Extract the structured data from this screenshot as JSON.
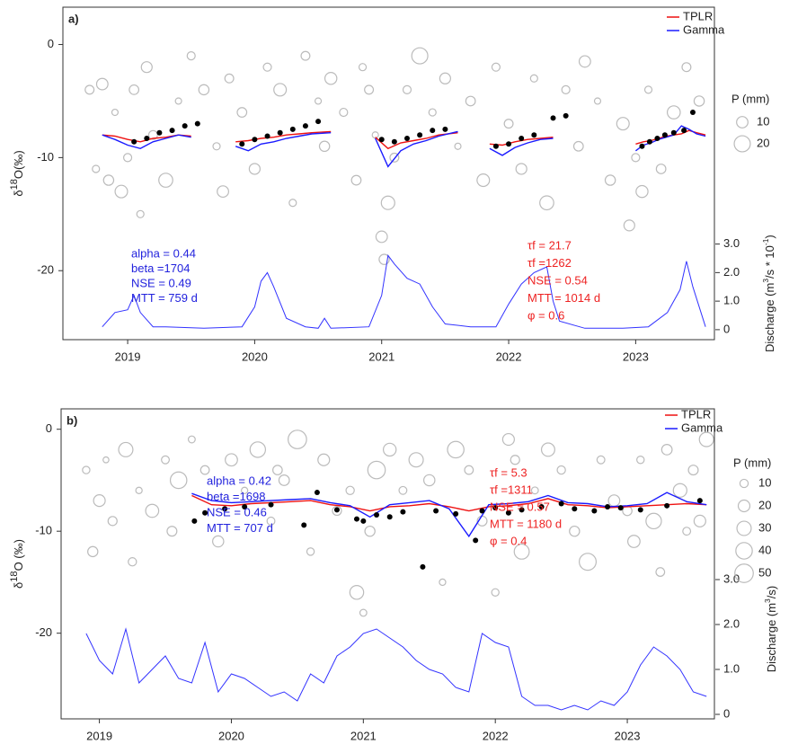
{
  "chart_data": [
    {
      "type": "line",
      "panel_label": "a)",
      "y_label_parts": [
        "δ",
        "18",
        "O(‰)"
      ],
      "y2_label_parts": [
        "Discharge (m",
        "3",
        "/s * 10",
        "-1",
        ")"
      ],
      "xlim": [
        2018.49,
        2023.62
      ],
      "xticks": [
        2019,
        2020,
        2021,
        2022,
        2023
      ],
      "ylim": [
        -26.1,
        3.3
      ],
      "yticks": [
        0,
        -10,
        -20
      ],
      "y2lim": [
        -0.35,
        11.3
      ],
      "y2ticks": [
        0,
        {
          "value": 1,
          "label": "1.0"
        },
        {
          "value": 2,
          "label": "2.0"
        },
        {
          "value": 3,
          "label": "3.0"
        }
      ],
      "x": [
        2018.8,
        2018.9,
        2019.0,
        2019.1,
        2019.2,
        2019.3,
        2019.4,
        2019.5,
        2019.7,
        2019.85,
        2019.95,
        2020.05,
        2020.15,
        2020.25,
        2020.35,
        2020.45,
        2020.6,
        2020.8,
        2020.95,
        2021.05,
        2021.15,
        2021.25,
        2021.35,
        2021.45,
        2021.6,
        2021.75,
        2021.85,
        2021.95,
        2022.05,
        2022.15,
        2022.25,
        2022.35,
        2022.7,
        2023.0,
        2023.06,
        2023.12,
        2023.18,
        2023.24,
        2023.3,
        2023.36,
        2023.42,
        2023.48,
        2023.55
      ],
      "series": [
        {
          "name": "TPLR",
          "color": "#ee1111",
          "values": [
            -8.0,
            -8.1,
            -8.4,
            -8.6,
            -8.3,
            -8.2,
            -8.0,
            -8.1,
            null,
            -8.6,
            -8.5,
            -8.3,
            -8.2,
            -8.0,
            -7.9,
            -7.8,
            -7.7,
            null,
            -8.2,
            -9.2,
            -8.7,
            -8.5,
            -8.3,
            -8.0,
            -7.8,
            null,
            -8.8,
            -8.9,
            -8.6,
            -8.4,
            -8.3,
            -8.2,
            null,
            -8.8,
            -8.6,
            -8.5,
            -8.3,
            -8.1,
            -8.0,
            -7.9,
            -7.6,
            -7.8,
            -8.0
          ]
        },
        {
          "name": "Gamma",
          "color": "#1a1aff",
          "values": [
            -8.0,
            -8.4,
            -8.9,
            -9.2,
            -8.6,
            -8.3,
            -8.0,
            -8.2,
            null,
            -9.0,
            -9.4,
            -8.8,
            -8.6,
            -8.3,
            -8.1,
            -7.9,
            -7.8,
            null,
            -8.3,
            -10.8,
            -9.4,
            -8.8,
            -8.5,
            -8.1,
            -7.7,
            null,
            -9.2,
            -9.8,
            -9.1,
            -8.7,
            -8.4,
            -8.3,
            null,
            -9.4,
            -8.9,
            -8.7,
            -8.4,
            -8.2,
            -8.0,
            -7.2,
            -7.5,
            -7.9,
            -8.1
          ]
        }
      ],
      "observed": {
        "color": "#000000",
        "x": [
          2019.05,
          2019.15,
          2019.25,
          2019.35,
          2019.45,
          2019.55,
          2019.9,
          2020.0,
          2020.1,
          2020.2,
          2020.3,
          2020.4,
          2020.5,
          2021.0,
          2021.1,
          2021.2,
          2021.3,
          2021.4,
          2021.5,
          2021.9,
          2022.0,
          2022.1,
          2022.2,
          2022.35,
          2022.45,
          2023.05,
          2023.11,
          2023.17,
          2023.23,
          2023.3,
          2023.38,
          2023.45
        ],
        "values": [
          -8.6,
          -8.3,
          -7.8,
          -7.6,
          -7.2,
          -7.0,
          -8.8,
          -8.4,
          -8.1,
          -7.8,
          -7.5,
          -7.2,
          -6.8,
          -8.4,
          -8.6,
          -8.3,
          -8.0,
          -7.6,
          -7.5,
          -9.0,
          -8.8,
          -8.3,
          -8.0,
          -6.5,
          -6.3,
          -9.0,
          -8.6,
          -8.3,
          -8.0,
          -7.8,
          -7.6,
          -6.0
        ]
      },
      "precipitation": {
        "color": "#bbbbbb",
        "x": [
          2018.7,
          2018.75,
          2018.8,
          2018.85,
          2018.9,
          2018.95,
          2019.0,
          2019.05,
          2019.1,
          2019.15,
          2019.2,
          2019.3,
          2019.4,
          2019.5,
          2019.6,
          2019.7,
          2019.75,
          2019.8,
          2019.9,
          2020.0,
          2020.1,
          2020.2,
          2020.3,
          2020.4,
          2020.5,
          2020.55,
          2020.6,
          2020.7,
          2020.8,
          2020.85,
          2020.9,
          2020.95,
          2021.0,
          2021.02,
          2021.05,
          2021.1,
          2021.2,
          2021.3,
          2021.4,
          2021.5,
          2021.6,
          2021.7,
          2021.8,
          2021.9,
          2022.0,
          2022.1,
          2022.2,
          2022.3,
          2022.45,
          2022.55,
          2022.6,
          2022.7,
          2022.8,
          2022.9,
          2022.95,
          2023.0,
          2023.05,
          2023.1,
          2023.2,
          2023.3,
          2023.4,
          2023.5
        ],
        "values": [
          -4,
          -11,
          -3.5,
          -12,
          -6,
          -13,
          -10,
          -4,
          -15,
          -2,
          -8,
          -12,
          -5,
          -1,
          -4,
          -9,
          -13,
          -3,
          -6,
          -11,
          -2,
          -4,
          -14,
          -1,
          -5,
          -9,
          -3,
          -6,
          -12,
          -2,
          -4,
          -8,
          -17,
          -19,
          -14,
          -10,
          -4,
          -1,
          -6,
          -3,
          -9,
          -5,
          -12,
          -2,
          -7,
          -11,
          -3,
          -14,
          -4,
          -9,
          -1.5,
          -5,
          -12,
          -7,
          -16,
          -10,
          -13,
          -4,
          -11,
          -6,
          -2,
          -5
        ],
        "sizes": [
          6,
          4,
          10,
          8,
          3,
          12,
          5,
          7,
          4,
          9,
          6,
          15,
          3,
          5,
          8,
          4,
          10,
          6,
          7,
          9,
          5,
          12,
          4,
          6,
          3,
          8,
          11,
          5,
          7,
          4,
          6,
          3,
          10,
          8,
          14,
          6,
          5,
          20,
          4,
          9,
          3,
          7,
          12,
          5,
          6,
          9,
          4,
          15,
          5,
          7,
          10,
          3,
          8,
          12,
          9,
          5,
          11,
          4,
          7,
          13,
          6,
          8
        ]
      },
      "size_legend": {
        "title": "P (mm)",
        "values": [
          10,
          20
        ]
      },
      "discharge": {
        "color": "#3333ff",
        "axis": "y2",
        "x": [
          2018.8,
          2018.9,
          2019.0,
          2019.05,
          2019.1,
          2019.2,
          2019.3,
          2019.6,
          2019.9,
          2020.0,
          2020.05,
          2020.1,
          2020.15,
          2020.25,
          2020.4,
          2020.5,
          2020.55,
          2020.6,
          2020.9,
          2021.0,
          2021.05,
          2021.1,
          2021.2,
          2021.3,
          2021.4,
          2021.5,
          2021.7,
          2021.9,
          2022.0,
          2022.1,
          2022.2,
          2022.3,
          2022.35,
          2022.4,
          2022.6,
          2022.9,
          2023.1,
          2023.25,
          2023.35,
          2023.4,
          2023.45,
          2023.55
        ],
        "values": [
          0.1,
          0.6,
          0.7,
          1.2,
          0.6,
          0.1,
          0.1,
          0.05,
          0.1,
          0.8,
          1.7,
          2.0,
          1.5,
          0.4,
          0.1,
          0.05,
          0.4,
          0.05,
          0.1,
          1.2,
          2.6,
          2.3,
          1.8,
          1.6,
          0.8,
          0.2,
          0.1,
          0.1,
          0.9,
          1.6,
          2.0,
          2.2,
          1.0,
          0.3,
          0.05,
          0.05,
          0.1,
          0.6,
          1.4,
          2.4,
          1.5,
          0.1
        ]
      },
      "annotations": [
        {
          "color": "#2222dd",
          "lines": [
            "alpha = 0.44",
            "beta =1704",
            "NSE = 0.49",
            "MTT = 759 d"
          ]
        },
        {
          "color": "#ee2222",
          "lines": [
            "τf = 21.7",
            "τf =1262",
            "NSE = 0.54",
            "MTT = 1014 d",
            "φ = 0.6"
          ]
        }
      ]
    },
    {
      "type": "line",
      "panel_label": "b)",
      "y_label_parts": [
        "δ",
        "18",
        "O (‰)"
      ],
      "y2_label_parts": [
        "Discharge (m",
        "3",
        "/s)"
      ],
      "xlim": [
        2018.71,
        2023.66
      ],
      "xticks": [
        2019,
        2020,
        2021,
        2022,
        2023
      ],
      "ylim": [
        -28.4,
        2
      ],
      "yticks": [
        0,
        -10,
        -20
      ],
      "y2lim": [
        -0.1,
        6.8
      ],
      "y2ticks": [
        0,
        {
          "value": 1,
          "label": "1.0"
        },
        {
          "value": 2,
          "label": "2.0"
        },
        {
          "value": 3,
          "label": "3.0"
        }
      ],
      "x": [
        2019.7,
        2019.85,
        2020.0,
        2020.15,
        2020.3,
        2020.45,
        2020.6,
        2020.75,
        2020.9,
        2021.05,
        2021.2,
        2021.35,
        2021.5,
        2021.65,
        2021.8,
        2021.95,
        2022.1,
        2022.25,
        2022.4,
        2022.55,
        2022.7,
        2022.85,
        2023.0,
        2023.15,
        2023.3,
        2023.45,
        2023.6
      ],
      "series": [
        {
          "name": "TPLR",
          "color": "#ee1111",
          "values": [
            -6.5,
            -7.4,
            -7.5,
            -7.3,
            -7.2,
            -7.1,
            -7.0,
            -7.4,
            -7.6,
            -8.0,
            -7.6,
            -7.5,
            -7.3,
            -7.6,
            -8.0,
            -7.6,
            -7.5,
            -7.3,
            -6.8,
            -7.4,
            -7.5,
            -7.7,
            -7.6,
            -7.5,
            -7.4,
            -7.3,
            -7.4
          ]
        },
        {
          "name": "Gamma",
          "color": "#1a1aff",
          "values": [
            -6.3,
            -7.0,
            -7.2,
            -7.1,
            -7.0,
            -6.9,
            -6.8,
            -7.2,
            -7.5,
            -8.6,
            -7.4,
            -7.2,
            -7.0,
            -7.8,
            -10.5,
            -7.4,
            -7.3,
            -7.1,
            -6.5,
            -7.2,
            -7.3,
            -7.6,
            -7.5,
            -7.3,
            -6.2,
            -7.1,
            -7.4
          ]
        }
      ],
      "observed": {
        "color": "#000000",
        "x": [
          2019.72,
          2019.8,
          2019.95,
          2020.1,
          2020.3,
          2020.55,
          2020.65,
          2020.8,
          2020.95,
          2021.0,
          2021.1,
          2021.2,
          2021.3,
          2021.45,
          2021.55,
          2021.7,
          2021.85,
          2021.9,
          2022.0,
          2022.1,
          2022.2,
          2022.35,
          2022.5,
          2022.6,
          2022.75,
          2022.85,
          2022.95,
          2023.1,
          2023.3,
          2023.55
        ],
        "values": [
          -9.0,
          -8.2,
          -7.8,
          -7.6,
          -7.4,
          -9.4,
          -6.2,
          -7.9,
          -8.8,
          -9.0,
          -8.4,
          -8.6,
          -8.1,
          -13.5,
          -8.0,
          -8.3,
          -10.9,
          -8.0,
          -7.7,
          -8.2,
          -7.9,
          -7.6,
          -7.3,
          -7.8,
          -8.0,
          -7.6,
          -7.7,
          -7.9,
          -7.5,
          -7.0
        ]
      },
      "precipitation": {
        "color": "#bbbbbb",
        "x": [
          2018.9,
          2018.95,
          2019.0,
          2019.05,
          2019.1,
          2019.2,
          2019.25,
          2019.3,
          2019.4,
          2019.5,
          2019.55,
          2019.6,
          2019.7,
          2019.8,
          2019.9,
          2020.0,
          2020.1,
          2020.2,
          2020.3,
          2020.35,
          2020.4,
          2020.5,
          2020.6,
          2020.7,
          2020.8,
          2020.9,
          2020.95,
          2021.0,
          2021.05,
          2021.1,
          2021.2,
          2021.3,
          2021.4,
          2021.5,
          2021.6,
          2021.7,
          2021.8,
          2021.9,
          2022.0,
          2022.1,
          2022.15,
          2022.2,
          2022.3,
          2022.4,
          2022.5,
          2022.6,
          2022.7,
          2022.8,
          2022.9,
          2023.0,
          2023.05,
          2023.1,
          2023.2,
          2023.25,
          2023.3,
          2023.4,
          2023.45,
          2023.5,
          2023.55,
          2023.6
        ],
        "values": [
          -4,
          -12,
          -7,
          -3,
          -9,
          -2,
          -13,
          -6,
          -8,
          -3,
          -10,
          -5,
          -1,
          -4,
          -11,
          -3,
          -6,
          -2,
          -9,
          -4,
          -5,
          -1,
          -12,
          -3,
          -8,
          -6,
          -16,
          -18,
          -10,
          -4,
          -2,
          -6,
          -3,
          -5,
          -15,
          -2,
          -4,
          -9,
          -16,
          -1,
          -3,
          -12,
          -6,
          -2,
          -4,
          -10,
          -13,
          -3,
          -7,
          -8,
          -11,
          -3,
          -9,
          -14,
          -2,
          -6,
          -10,
          -4,
          -9,
          -1
        ],
        "sizes": [
          8,
          15,
          20,
          5,
          12,
          30,
          10,
          6,
          25,
          9,
          14,
          40,
          7,
          11,
          18,
          22,
          6,
          35,
          9,
          13,
          16,
          50,
          8,
          20,
          12,
          10,
          28,
          7,
          15,
          45,
          24,
          9,
          30,
          18,
          6,
          40,
          11,
          14,
          8,
          20,
          12,
          33,
          7,
          26,
          10,
          15,
          42,
          9,
          19,
          13,
          22,
          8,
          35,
          11,
          16,
          27,
          9,
          14,
          20,
          30
        ]
      },
      "size_legend": {
        "title": "P (mm)",
        "values": [
          10,
          20,
          30,
          40,
          50
        ]
      },
      "discharge": {
        "color": "#3333ff",
        "axis": "y2",
        "x": [
          2018.9,
          2019.0,
          2019.1,
          2019.2,
          2019.3,
          2019.4,
          2019.5,
          2019.6,
          2019.7,
          2019.8,
          2019.9,
          2020.0,
          2020.1,
          2020.2,
          2020.3,
          2020.4,
          2020.5,
          2020.6,
          2020.7,
          2020.8,
          2020.9,
          2021.0,
          2021.1,
          2021.2,
          2021.3,
          2021.4,
          2021.5,
          2021.6,
          2021.7,
          2021.8,
          2021.9,
          2022.0,
          2022.1,
          2022.2,
          2022.3,
          2022.4,
          2022.5,
          2022.6,
          2022.7,
          2022.8,
          2022.9,
          2023.0,
          2023.1,
          2023.2,
          2023.3,
          2023.4,
          2023.5,
          2023.6
        ],
        "values": [
          1.8,
          1.2,
          0.9,
          1.9,
          0.7,
          1.0,
          1.3,
          0.8,
          0.7,
          1.6,
          0.5,
          0.9,
          0.8,
          0.6,
          0.4,
          0.5,
          0.3,
          0.9,
          0.7,
          1.3,
          1.5,
          1.8,
          1.9,
          1.7,
          1.5,
          1.2,
          1.0,
          0.9,
          0.6,
          0.5,
          1.8,
          1.6,
          1.5,
          0.4,
          0.2,
          0.2,
          0.1,
          0.2,
          0.1,
          0.3,
          0.2,
          0.5,
          1.1,
          1.5,
          1.3,
          1.0,
          0.5,
          0.4
        ]
      },
      "annotations": [
        {
          "color": "#2222dd",
          "lines": [
            "alpha = 0.42",
            "beta =1698",
            "NSE = 0.46",
            "MTT = 707 d"
          ]
        },
        {
          "color": "#ee2222",
          "lines": [
            "τf = 5.3",
            "τf =1311",
            "NSE = 0.57",
            "MTT = 1180 d",
            "φ = 0.4"
          ]
        }
      ]
    }
  ]
}
